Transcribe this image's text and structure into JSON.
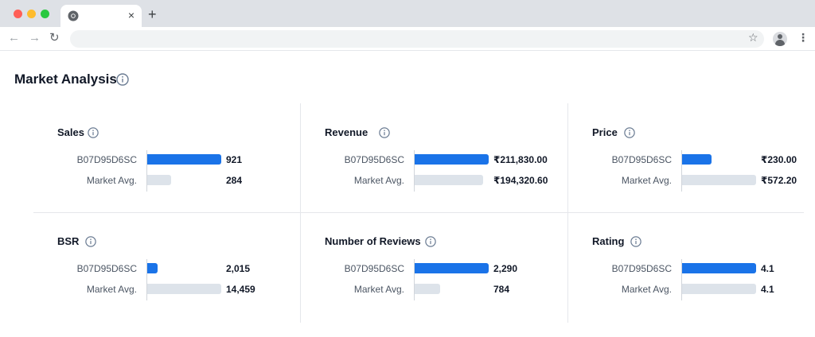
{
  "browser": {
    "tab_close": "×",
    "new_tab": "+",
    "back": "←",
    "forward": "→",
    "reload": "↻",
    "star": "☆",
    "menu": "⋮",
    "icons": [
      "chrome-icon",
      "close-icon",
      "plus-icon",
      "back-arrow-icon",
      "forward-arrow-icon",
      "reload-icon",
      "star-icon",
      "profile-icon",
      "kebab-menu-icon"
    ]
  },
  "page": {
    "title": "Market Analysis"
  },
  "metrics": [
    {
      "title": "Sales",
      "product_label": "B07D95D6SC",
      "product_value": "921",
      "avg_label": "Market Avg.",
      "avg_value": "284",
      "product_fraction": 1.0,
      "avg_fraction": 0.32
    },
    {
      "title": "Revenue",
      "product_label": "B07D95D6SC",
      "product_value": "₹211,830.00",
      "avg_label": "Market Avg.",
      "avg_value": "₹194,320.60",
      "product_fraction": 1.0,
      "avg_fraction": 0.92
    },
    {
      "title": "Price",
      "product_label": "B07D95D6SC",
      "product_value": "₹230.00",
      "avg_label": "Market Avg.",
      "avg_value": "₹572.20",
      "product_fraction": 0.4,
      "avg_fraction": 1.0
    },
    {
      "title": "BSR",
      "product_label": "B07D95D6SC",
      "product_value": "2,015",
      "avg_label": "Market Avg.",
      "avg_value": "14,459",
      "product_fraction": 0.14,
      "avg_fraction": 1.0
    },
    {
      "title": "Number of Reviews",
      "product_label": "B07D95D6SC",
      "product_value": "2,290",
      "avg_label": "Market Avg.",
      "avg_value": "784",
      "product_fraction": 1.0,
      "avg_fraction": 0.34
    },
    {
      "title": "Rating",
      "product_label": "B07D95D6SC",
      "product_value": "4.1",
      "avg_label": "Market Avg.",
      "avg_value": "4.1",
      "product_fraction": 1.0,
      "avg_fraction": 1.0
    }
  ],
  "colors": {
    "product_bar": "#1a73e8",
    "avg_bar": "#dde3ea",
    "info_icon": "#6b7c93"
  }
}
